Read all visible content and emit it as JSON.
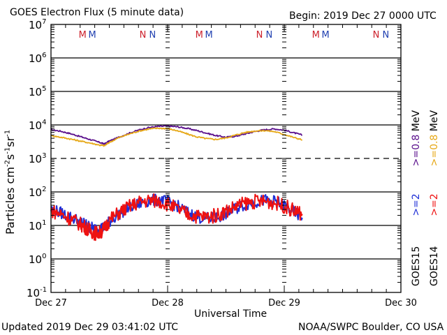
{
  "header": {
    "title": "GOES Electron Flux (5 minute data)",
    "begin": "Begin: 2019 Dec 27 0000 UTC"
  },
  "footer": {
    "updated": "Updated 2019 Dec 29 03:41:02 UTC",
    "credit": "NOAA/SWPC Boulder, CO USA"
  },
  "colors": {
    "goes15_08": "#5a0f8c",
    "goes14_08": "#e6a817",
    "goes15_2": "#1f2fd6",
    "goes14_2": "#ee1111",
    "midnight_m": "#cc1f2a",
    "noon_n": "#1f3fb0",
    "frame": "#000000"
  },
  "chart_data": {
    "type": "line",
    "title": "GOES Electron Flux (5 minute data)",
    "xlabel": "Universal Time",
    "ylabel": "Particles cm-2 s-1 sr-1",
    "yscale": "log",
    "ylim": [
      0.1,
      10000000
    ],
    "xlim_hours": [
      0,
      72
    ],
    "x_unit": "hours since 2019 Dec 27 0000 UTC",
    "x_tick_labels": [
      {
        "hour": 0,
        "label": "Dec 27"
      },
      {
        "hour": 24,
        "label": "Dec 28"
      },
      {
        "hour": 48,
        "label": "Dec 29"
      },
      {
        "hour": 72,
        "label": "Dec 30"
      }
    ],
    "y_tick_labels": [
      {
        "value": 10000000,
        "base": "10",
        "exp": "7"
      },
      {
        "value": 1000000,
        "base": "10",
        "exp": "6"
      },
      {
        "value": 100000,
        "base": "10",
        "exp": "5"
      },
      {
        "value": 10000,
        "base": "10",
        "exp": "4"
      },
      {
        "value": 1000,
        "base": "10",
        "exp": "3"
      },
      {
        "value": 100,
        "base": "10",
        "exp": "2"
      },
      {
        "value": 10,
        "base": "10",
        "exp": "1"
      },
      {
        "value": 1,
        "base": "10",
        "exp": "0"
      },
      {
        "value": 0.1,
        "base": "10",
        "exp": "-1"
      }
    ],
    "threshold_line": {
      "value": 1000,
      "style": "dashed"
    },
    "grid": "horizontal at each decade",
    "markers": [
      {
        "hour": 6.5,
        "label": "M",
        "color_key": "midnight_m"
      },
      {
        "hour": 8.5,
        "label": "M",
        "color_key": "noon_n"
      },
      {
        "hour": 18.9,
        "label": "N",
        "color_key": "midnight_m"
      },
      {
        "hour": 20.9,
        "label": "N",
        "color_key": "noon_n"
      },
      {
        "hour": 30.5,
        "label": "M",
        "color_key": "midnight_m"
      },
      {
        "hour": 32.5,
        "label": "M",
        "color_key": "noon_n"
      },
      {
        "hour": 42.9,
        "label": "N",
        "color_key": "midnight_m"
      },
      {
        "hour": 44.9,
        "label": "N",
        "color_key": "noon_n"
      },
      {
        "hour": 54.5,
        "label": "M",
        "color_key": "midnight_m"
      },
      {
        "hour": 56.5,
        "label": "M",
        "color_key": "noon_n"
      },
      {
        "hour": 66.9,
        "label": "N",
        "color_key": "midnight_m"
      },
      {
        "hour": 68.9,
        "label": "N",
        "color_key": "noon_n"
      }
    ],
    "legend": {
      "placement": "right-vertical",
      "columns": [
        {
          "satellite": "GOES15",
          "low": ">=2",
          "high": ">=0.8",
          "unit": "MeV",
          "low_color_key": "goes15_2",
          "high_color_key": "goes15_08"
        },
        {
          "satellite": "GOES14",
          "low": ">=2",
          "high": ">=0.8",
          "unit": "MeV",
          "low_color_key": "goes14_2",
          "high_color_key": "goes14_08"
        }
      ]
    },
    "series": [
      {
        "name": "GOES15 >=0.8 MeV",
        "color_key": "goes15_08",
        "noise": 0.02,
        "x": [
          0,
          2,
          4,
          6,
          8,
          10,
          11,
          12,
          14,
          16,
          18,
          20,
          22,
          24,
          26,
          28,
          30,
          32,
          34,
          36,
          38,
          40,
          42,
          44,
          46,
          48,
          50,
          51.7
        ],
        "y": [
          7200,
          6500,
          5500,
          4500,
          3700,
          3000,
          2700,
          3300,
          4300,
          5600,
          7000,
          8300,
          9000,
          9300,
          8800,
          7900,
          6800,
          5700,
          4800,
          4300,
          4600,
          5400,
          6400,
          7200,
          7600,
          7000,
          5800,
          5000
        ]
      },
      {
        "name": "GOES14 >=0.8 MeV",
        "color_key": "goes14_08",
        "noise": 0.02,
        "x": [
          0,
          2,
          4,
          6,
          8,
          10,
          11,
          12,
          14,
          16,
          18,
          20,
          22,
          24,
          26,
          28,
          30,
          32,
          34,
          36,
          38,
          40,
          42,
          44,
          46,
          48,
          50,
          51.7
        ],
        "y": [
          4800,
          4300,
          3800,
          3300,
          2900,
          2500,
          2400,
          3000,
          4200,
          5300,
          6500,
          7500,
          8000,
          7800,
          6700,
          5400,
          4400,
          3900,
          3700,
          4100,
          5000,
          6000,
          6600,
          6800,
          6300,
          5200,
          4200,
          3600
        ]
      },
      {
        "name": "GOES15 >=2 MeV",
        "color_key": "goes15_2",
        "noise": 0.18,
        "x": [
          0,
          2,
          4,
          6,
          7,
          8,
          9,
          10,
          11,
          12,
          14,
          16,
          18,
          20,
          22,
          24,
          26,
          28,
          30,
          32,
          34,
          36,
          38,
          40,
          42,
          44,
          46,
          48,
          50,
          51.7
        ],
        "y": [
          30,
          24,
          18,
          13,
          11,
          9,
          8,
          8,
          9,
          13,
          22,
          33,
          44,
          54,
          58,
          52,
          38,
          25,
          18,
          16,
          17,
          22,
          32,
          42,
          50,
          56,
          53,
          40,
          25,
          17
        ]
      },
      {
        "name": "GOES14 >=2 MeV",
        "color_key": "goes14_2",
        "noise": 0.22,
        "x": [
          0,
          2,
          4,
          6,
          7,
          8,
          9,
          10,
          11,
          12,
          14,
          16,
          18,
          20,
          22,
          24,
          26,
          28,
          30,
          32,
          34,
          36,
          38,
          40,
          42,
          44,
          46,
          48,
          50,
          51.7
        ],
        "y": [
          28,
          22,
          16,
          11,
          9,
          7,
          6,
          6,
          8,
          14,
          24,
          36,
          48,
          56,
          54,
          44,
          30,
          22,
          19,
          18,
          20,
          27,
          37,
          46,
          52,
          52,
          48,
          38,
          27,
          22
        ]
      }
    ]
  }
}
